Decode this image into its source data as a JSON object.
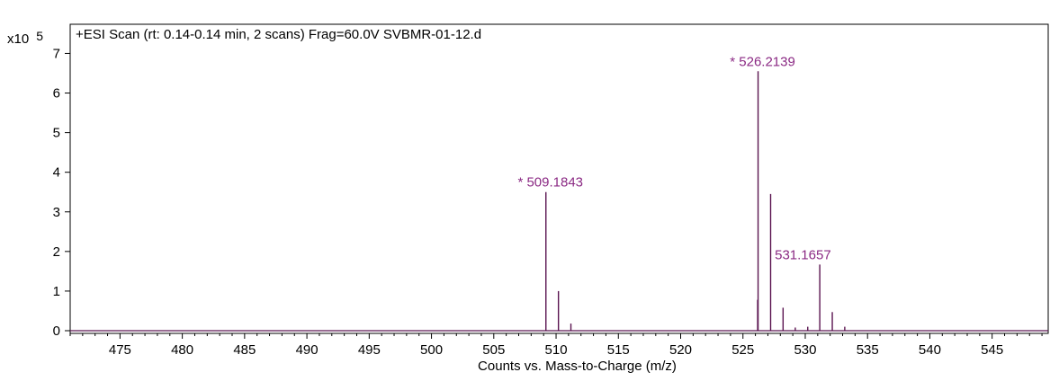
{
  "chart_data": {
    "type": "line",
    "title": "+ESI Scan (rt: 0.14-0.14 min, 2 scans) Frag=60.0V SVBMR-01-12.d",
    "xlabel": "Counts vs. Mass-to-Charge (m/z)",
    "ylabel": "",
    "y_scale_prefix": "x10",
    "y_scale_exponent": "5",
    "xlim": [
      471,
      549.5
    ],
    "ylim": [
      0,
      7.5
    ],
    "x_ticks": [
      475,
      480,
      485,
      490,
      495,
      500,
      505,
      510,
      515,
      520,
      525,
      530,
      535,
      540,
      545
    ],
    "y_ticks": [
      0,
      1,
      2,
      3,
      4,
      5,
      6,
      7
    ],
    "grid": false,
    "series": [
      {
        "color": "#5a1450",
        "peaks": [
          {
            "x": 509.1843,
            "y": 3.5
          },
          {
            "x": 510.19,
            "y": 1.0
          },
          {
            "x": 511.19,
            "y": 0.18
          },
          {
            "x": 526.18,
            "y": 0.78
          },
          {
            "x": 526.2139,
            "y": 6.55
          },
          {
            "x": 527.22,
            "y": 3.45
          },
          {
            "x": 528.22,
            "y": 0.58
          },
          {
            "x": 529.2,
            "y": 0.08
          },
          {
            "x": 530.2,
            "y": 0.1
          },
          {
            "x": 531.1657,
            "y": 1.67
          },
          {
            "x": 532.17,
            "y": 0.47
          },
          {
            "x": 533.17,
            "y": 0.1
          }
        ]
      }
    ],
    "annotations": [
      {
        "text": "* 509.1843",
        "x": 509.1843,
        "y": 3.5
      },
      {
        "text": "* 526.2139",
        "x": 526.2139,
        "y": 6.55
      },
      {
        "text": "531.1657",
        "x": 531.1657,
        "y": 1.67
      }
    ],
    "annotation_color": "#8b2a84"
  }
}
